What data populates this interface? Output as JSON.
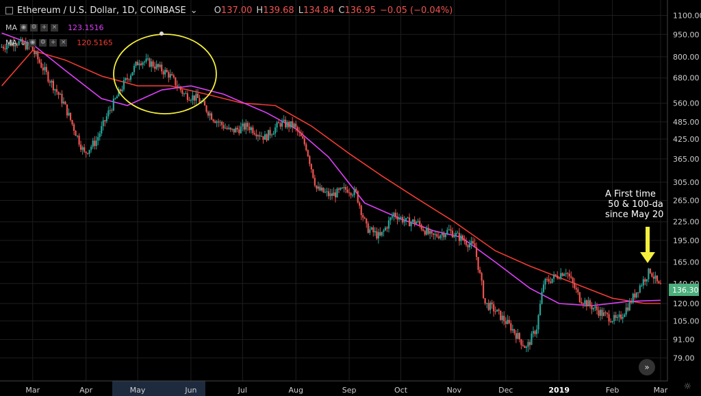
{
  "header": {
    "symbol": "Ethereum / U.S. Dollar, 1D, COINBASE",
    "open_label": "O",
    "open": "137.00",
    "high_label": "H",
    "high": "139.68",
    "low_label": "L",
    "low": "134.84",
    "close_label": "C",
    "close": "136.95",
    "change": "−0.05 (−0.04%)"
  },
  "indicators": [
    {
      "label": "MA",
      "value": "123.1516",
      "color": "#e040fb"
    },
    {
      "label": "MA",
      "value": "120.5165",
      "color": "#f23b33"
    }
  ],
  "annotation": "A First time\n 50 & 100-da\nsince May 20",
  "price_tag": "136.30",
  "colors": {
    "up": "#26a69a",
    "down": "#ef5350",
    "ma50": "#e040fb",
    "ma100": "#f23b33",
    "circle": "#f5f03c",
    "arrow": "#f5f03c"
  },
  "chart_data": {
    "type": "candlestick",
    "scale": "log",
    "ylim": [
      72,
      1150
    ],
    "y_ticks": [
      "1100.00",
      "950.00",
      "800.00",
      "680.00",
      "560.00",
      "485.00",
      "425.00",
      "365.00",
      "305.00",
      "265.00",
      "225.00",
      "195.00",
      "165.00",
      "140.00",
      "120.00",
      "105.00",
      "91.00",
      "79.00"
    ],
    "x_ticks": [
      "Mar",
      "Apr",
      "May",
      "Jun",
      "Jul",
      "Aug",
      "Sep",
      "Oct",
      "Nov",
      "Dec",
      "2019",
      "Feb",
      "Mar"
    ],
    "price_series": {
      "x": [
        "2018-02-11",
        "2018-02-20",
        "2018-03-01",
        "2018-03-10",
        "2018-03-20",
        "2018-04-01",
        "2018-04-08",
        "2018-04-15",
        "2018-04-24",
        "2018-05-03",
        "2018-05-10",
        "2018-05-20",
        "2018-05-29",
        "2018-06-06",
        "2018-06-15",
        "2018-06-25",
        "2018-07-05",
        "2018-07-15",
        "2018-07-24",
        "2018-08-01",
        "2018-08-08",
        "2018-08-14",
        "2018-08-22",
        "2018-09-01",
        "2018-09-06",
        "2018-09-12",
        "2018-09-20",
        "2018-09-28",
        "2018-10-05",
        "2018-10-11",
        "2018-10-20",
        "2018-10-30",
        "2018-11-14",
        "2018-11-20",
        "2018-11-25",
        "2018-12-05",
        "2018-12-14",
        "2018-12-20",
        "2018-12-24",
        "2019-01-06",
        "2019-01-14",
        "2019-01-28",
        "2019-02-05",
        "2019-02-12",
        "2019-02-17",
        "2019-02-24",
        "2019-03-01"
      ],
      "y": [
        860,
        900,
        860,
        700,
        560,
        380,
        420,
        520,
        650,
        780,
        760,
        700,
        600,
        580,
        500,
        450,
        470,
        430,
        480,
        470,
        400,
        290,
        275,
        290,
        280,
        215,
        200,
        240,
        225,
        225,
        200,
        210,
        185,
        120,
        115,
        100,
        85,
        100,
        140,
        155,
        125,
        110,
        105,
        120,
        135,
        155,
        137
      ]
    },
    "ma50": {
      "label": "MA 50",
      "x": [
        "2018-02-11",
        "2018-03-01",
        "2018-03-20",
        "2018-04-10",
        "2018-04-25",
        "2018-05-15",
        "2018-06-01",
        "2018-06-20",
        "2018-07-15",
        "2018-08-01",
        "2018-08-20",
        "2018-09-10",
        "2018-10-01",
        "2018-10-20",
        "2018-11-05",
        "2018-11-25",
        "2018-12-15",
        "2019-01-01",
        "2019-01-20",
        "2019-02-10",
        "2019-03-01"
      ],
      "y": [
        960,
        880,
        720,
        580,
        550,
        620,
        640,
        600,
        520,
        460,
        370,
        260,
        230,
        210,
        200,
        165,
        135,
        120,
        118,
        122,
        123
      ]
    },
    "ma100": {
      "label": "MA 100",
      "x": [
        "2018-02-11",
        "2018-03-01",
        "2018-03-20",
        "2018-04-10",
        "2018-05-01",
        "2018-05-20",
        "2018-06-10",
        "2018-07-01",
        "2018-07-20",
        "2018-08-10",
        "2018-09-01",
        "2018-09-20",
        "2018-10-10",
        "2018-11-01",
        "2018-11-25",
        "2018-12-15",
        "2019-01-10",
        "2019-02-01",
        "2019-02-20",
        "2019-03-01"
      ],
      "y": [
        640,
        840,
        780,
        690,
        640,
        640,
        600,
        560,
        550,
        470,
        380,
        320,
        270,
        225,
        180,
        160,
        140,
        125,
        120,
        120
      ]
    }
  }
}
